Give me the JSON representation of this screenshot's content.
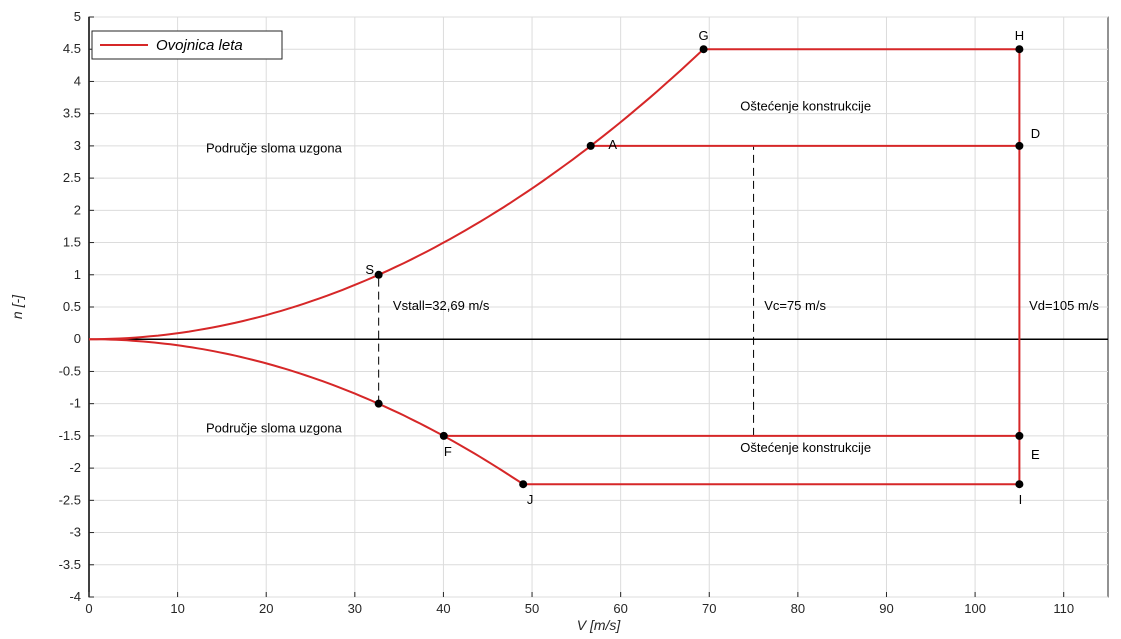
{
  "chart_data": {
    "type": "line",
    "xlabel": "V [m/s]",
    "ylabel": "n [-]",
    "xlim": [
      0,
      115
    ],
    "ylim": [
      -4,
      5
    ],
    "x_ticks": [
      0,
      10,
      20,
      30,
      40,
      50,
      60,
      70,
      80,
      90,
      100,
      110
    ],
    "y_ticks": [
      -4,
      -3.5,
      -3,
      -2.5,
      -2,
      -1.5,
      -1,
      -0.5,
      0,
      0.5,
      1,
      1.5,
      2,
      2.5,
      3,
      3.5,
      4,
      4.5,
      5
    ],
    "x_tick_labels": [
      "0",
      "10",
      "20",
      "30",
      "40",
      "50",
      "60",
      "70",
      "80",
      "90",
      "100",
      "110"
    ],
    "y_tick_labels": [
      "-4",
      "-3.5",
      "-3",
      "-2.5",
      "-2",
      "-1.5",
      "-1",
      "-0.5",
      "0",
      "0.5",
      "1",
      "1.5",
      "2",
      "2.5",
      "3",
      "3.5",
      "4",
      "4.5",
      "5"
    ],
    "grid": true,
    "legend": {
      "position": "top-left",
      "entries": [
        "Ovojnica leta"
      ]
    },
    "series": [
      {
        "name": "Ovojnica leta",
        "color": "#d62728",
        "positive_curve": {
          "n_max": 4.5,
          "v_stall": 32.69
        },
        "negative_curve": {
          "n_min": -2.25,
          "v_neg": 49
        },
        "upper_line": {
          "n": 4.5,
          "x": [
            69.36,
            105
          ]
        },
        "mid_upper_line": {
          "n": 3,
          "x": [
            56.62,
            105
          ]
        },
        "mid_lower_line": {
          "n": -1.5,
          "x": [
            40.04,
            105
          ]
        },
        "lower_line": {
          "n": -2.25,
          "x": [
            49,
            105
          ]
        },
        "vertical_line": {
          "x": 105,
          "y": [
            -2.25,
            4.5
          ]
        }
      }
    ],
    "points": [
      {
        "label": "G",
        "x": 69.36,
        "y": 4.5
      },
      {
        "label": "H",
        "x": 105,
        "y": 4.5
      },
      {
        "label": "A",
        "x": 56.62,
        "y": 3
      },
      {
        "label": "D",
        "x": 105,
        "y": 3
      },
      {
        "label": "S",
        "x": 32.69,
        "y": 1
      },
      {
        "label": "",
        "x": 32.69,
        "y": -1
      },
      {
        "label": "F",
        "x": 40.04,
        "y": -1.5
      },
      {
        "label": "E",
        "x": 105,
        "y": -1.5
      },
      {
        "label": "J",
        "x": 49,
        "y": -2.25
      },
      {
        "label": "I",
        "x": 105,
        "y": -2.25
      }
    ],
    "dashed_lines": [
      {
        "x": 32.69,
        "y": [
          -1,
          1
        ]
      },
      {
        "x": 75,
        "y": [
          -1.5,
          3
        ]
      }
    ],
    "annotations": [
      {
        "text": "Oštećenje konstrukcije",
        "x": 73.5,
        "y": 3.55
      },
      {
        "text": "Područje sloma uzgona",
        "x": 13.2,
        "y": 2.9
      },
      {
        "text": "Vstall=32,69 m/s",
        "x": 34.3,
        "y": 0.45
      },
      {
        "text": "Vc=75 m/s",
        "x": 76.2,
        "y": 0.45
      },
      {
        "text": "Vd=105 m/s",
        "x": 106.1,
        "y": 0.45
      },
      {
        "text": "Područje sloma uzgona",
        "x": 13.2,
        "y": -1.45
      },
      {
        "text": "Oštećenje konstrukcije",
        "x": 73.5,
        "y": -1.75
      }
    ]
  }
}
